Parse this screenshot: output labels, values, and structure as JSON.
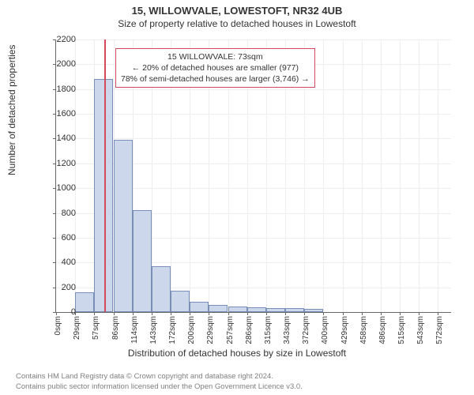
{
  "title": "15, WILLOWVALE, LOWESTOFT, NR32 4UB",
  "subtitle": "Size of property relative to detached houses in Lowestoft",
  "ylabel": "Number of detached properties",
  "xlabel": "Distribution of detached houses by size in Lowestoft",
  "chart": {
    "type": "histogram",
    "bar_fill": "#ccd7ec",
    "bar_border": "#7a8fb8",
    "indicator_color": "#d44a5a",
    "grid_color": "#eeeeee",
    "background_color": "#ffffff",
    "axis_fontsize": 11,
    "label_fontsize": 12,
    "yticks": [
      0,
      200,
      400,
      600,
      800,
      1000,
      1200,
      1400,
      1600,
      1800,
      2000,
      2200
    ],
    "ymax": 2200,
    "xticks": [
      "0sqm",
      "29sqm",
      "57sqm",
      "86sqm",
      "114sqm",
      "143sqm",
      "172sqm",
      "200sqm",
      "229sqm",
      "257sqm",
      "286sqm",
      "315sqm",
      "343sqm",
      "372sqm",
      "400sqm",
      "429sqm",
      "458sqm",
      "486sqm",
      "515sqm",
      "543sqm",
      "572sqm"
    ],
    "xmax_sqm": 600,
    "bar_width_sqm": 29,
    "values": [
      0,
      160,
      1880,
      1390,
      820,
      370,
      170,
      80,
      60,
      45,
      40,
      35,
      30,
      25,
      0,
      0,
      0,
      0,
      0,
      0,
      0
    ],
    "indicator_sqm": 73
  },
  "legend": {
    "line1": "15 WILLOWVALE: 73sqm",
    "line2": "← 20% of detached houses are smaller (977)",
    "line3": "78% of semi-detached houses are larger (3,746) →",
    "left_sqm": 90,
    "top_val": 2130
  },
  "footer": {
    "line1": "Contains HM Land Registry data © Crown copyright and database right 2024.",
    "line2": "Contains public sector information licensed under the Open Government Licence v3.0."
  }
}
